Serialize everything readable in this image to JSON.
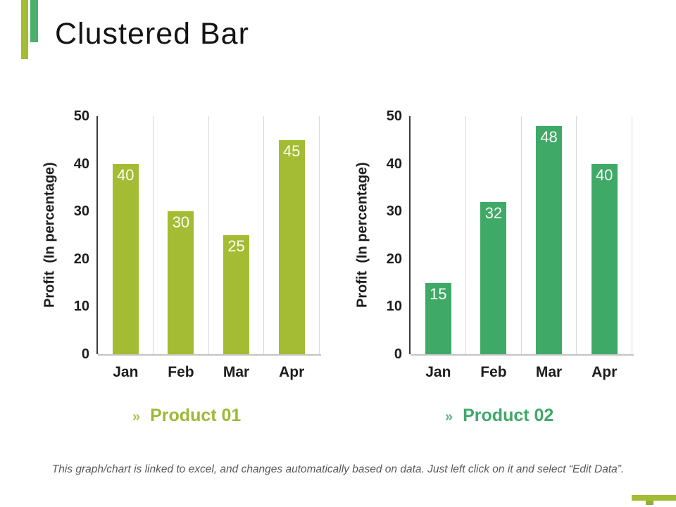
{
  "title": "Clustered Bar",
  "accent_colors": {
    "olive": "#a3bc33",
    "green": "#4ab06d",
    "corner_small": "#8fae3c"
  },
  "products": [
    {
      "chevron": "»",
      "label": "Product 01",
      "color": "#9cba35"
    },
    {
      "chevron": "»",
      "label": "Product 02",
      "color": "#3fa968"
    }
  ],
  "footer": {
    "note": "This graph/chart is linked to excel, and changes automatically based on data. Just left click on it and select “Edit Data”."
  },
  "chart_data": [
    {
      "type": "bar",
      "title": "Product 01",
      "categories": [
        "Jan",
        "Feb",
        "Mar",
        "Apr"
      ],
      "values": [
        40,
        30,
        25,
        45
      ],
      "bar_color": "#a3bc33",
      "data_label_color": "#fdfdf8",
      "xlabel": "",
      "ylabel": "Profit  (In percentage)",
      "ylim": [
        0,
        50
      ],
      "yticks": [
        0,
        10,
        20,
        30,
        40,
        50
      ],
      "grid": "vertical category separators only",
      "legend_position": "none",
      "data_labels": "inside top, white"
    },
    {
      "type": "bar",
      "title": "Product 02",
      "categories": [
        "Jan",
        "Feb",
        "Mar",
        "Apr"
      ],
      "values": [
        15,
        32,
        48,
        40
      ],
      "bar_color": "#3faa68",
      "data_label_color": "#fdfdf8",
      "xlabel": "",
      "ylabel": "Profit  (In percentage)",
      "ylim": [
        0,
        50
      ],
      "yticks": [
        0,
        10,
        20,
        30,
        40,
        50
      ],
      "grid": "vertical category separators only",
      "legend_position": "none",
      "data_labels": "inside top, white"
    }
  ]
}
